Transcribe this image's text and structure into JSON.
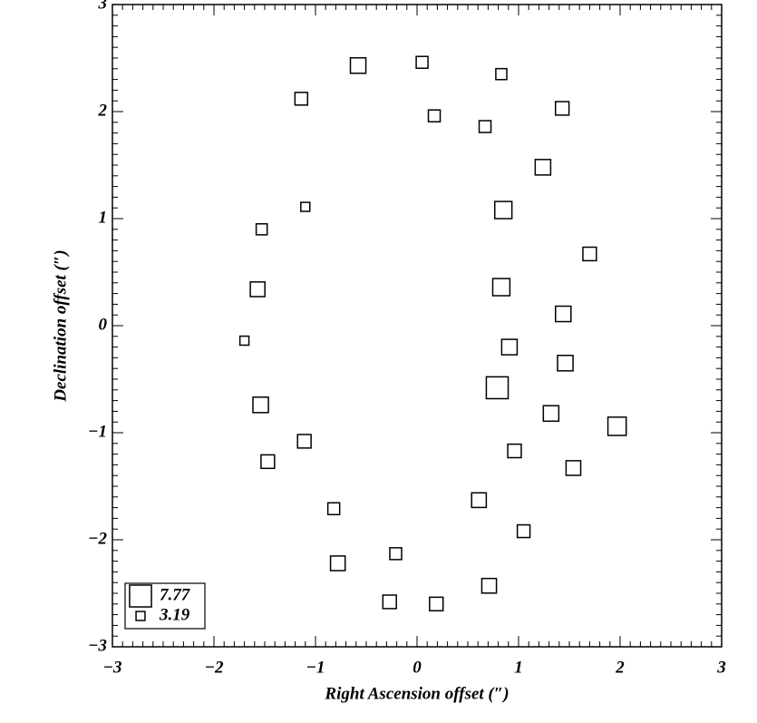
{
  "chart_data": {
    "type": "scatter",
    "xlabel": "Right Ascension offset (″)",
    "ylabel": "Declination offset (″)",
    "xlim": [
      -3,
      3
    ],
    "ylim": [
      -3,
      3
    ],
    "xticks": [
      {
        "value": -3,
        "label": "−3"
      },
      {
        "value": -2,
        "label": "−2"
      },
      {
        "value": -1,
        "label": "−1"
      },
      0,
      1,
      2,
      3
    ],
    "yticks": [
      {
        "value": -3,
        "label": "−3"
      },
      {
        "value": -2,
        "label": "−2"
      },
      {
        "value": -1,
        "label": "−1"
      },
      0,
      1,
      2,
      3
    ],
    "color": "#000000",
    "legend_sizes": [
      7.77,
      3.19
    ],
    "legend_position": "lower left",
    "x": [
      -0.58,
      0.05,
      0.83,
      -1.14,
      0.17,
      0.67,
      1.43,
      1.24,
      -1.1,
      -1.53,
      0.85,
      1.7,
      -1.57,
      0.83,
      1.44,
      -1.7,
      0.91,
      1.46,
      0.79,
      -1.54,
      1.32,
      1.97,
      -1.11,
      0.96,
      -1.47,
      1.54,
      0.61,
      -0.82,
      1.05,
      -0.21,
      -0.78,
      0.71,
      -0.27,
      0.19
    ],
    "y": [
      2.43,
      2.46,
      2.35,
      2.12,
      1.96,
      1.86,
      2.03,
      1.48,
      1.11,
      0.9,
      1.08,
      0.67,
      0.34,
      0.36,
      0.11,
      -0.14,
      -0.2,
      -0.35,
      -0.58,
      -0.74,
      -0.82,
      -0.94,
      -1.08,
      -1.17,
      -1.27,
      -1.33,
      -1.63,
      -1.71,
      -1.92,
      -2.13,
      -2.22,
      -2.43,
      -2.58,
      -2.6
    ],
    "sizes": [
      5.5,
      4.2,
      3.9,
      4.5,
      4.2,
      4.2,
      4.8,
      5.5,
      3.2,
      3.9,
      6.1,
      4.8,
      5.2,
      6.1,
      5.5,
      3.2,
      5.5,
      5.5,
      7.77,
      5.5,
      5.5,
      6.5,
      4.8,
      4.8,
      4.8,
      5.2,
      5.2,
      4.2,
      4.5,
      4.2,
      5.2,
      5.2,
      4.8,
      4.8
    ]
  }
}
